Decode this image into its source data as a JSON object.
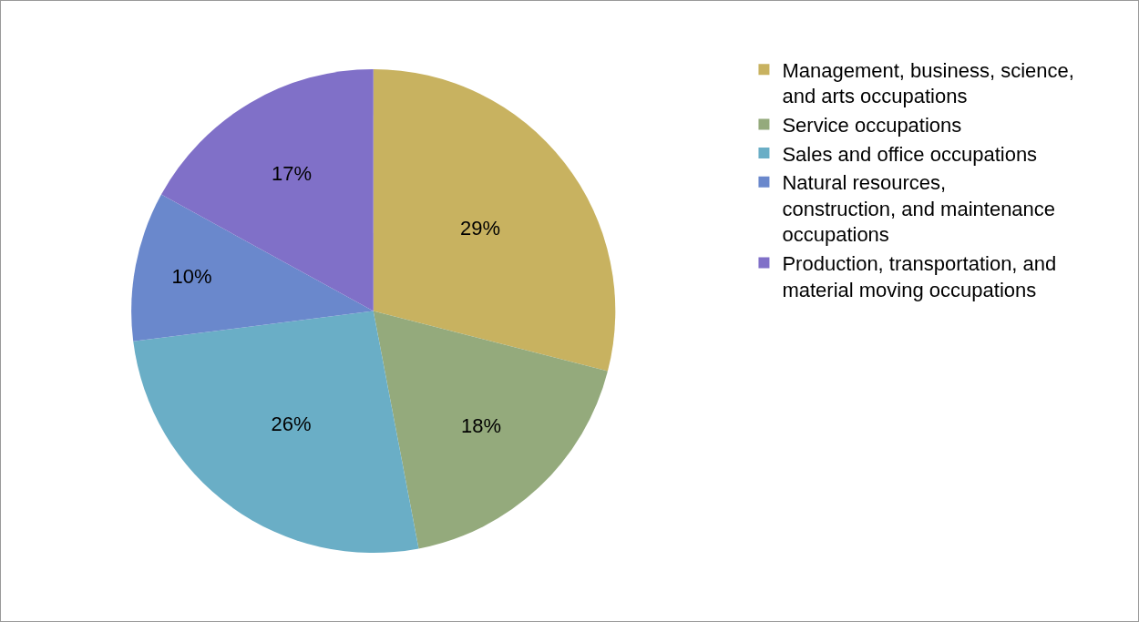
{
  "chart_data": {
    "type": "pie",
    "categories": [
      "Management, business, science, and arts occupations",
      "Service occupations",
      "Sales and office occupations",
      "Natural resources, construction, and maintenance occupations",
      "Production, transportation, and material moving occupations"
    ],
    "values": [
      29,
      18,
      26,
      10,
      17
    ],
    "value_labels": [
      "29%",
      "18%",
      "26%",
      "10%",
      "17%"
    ],
    "colors": [
      "#c8b260",
      "#94aa7c",
      "#6aaec6",
      "#6a88cc",
      "#8070c8"
    ],
    "legend": "right"
  }
}
